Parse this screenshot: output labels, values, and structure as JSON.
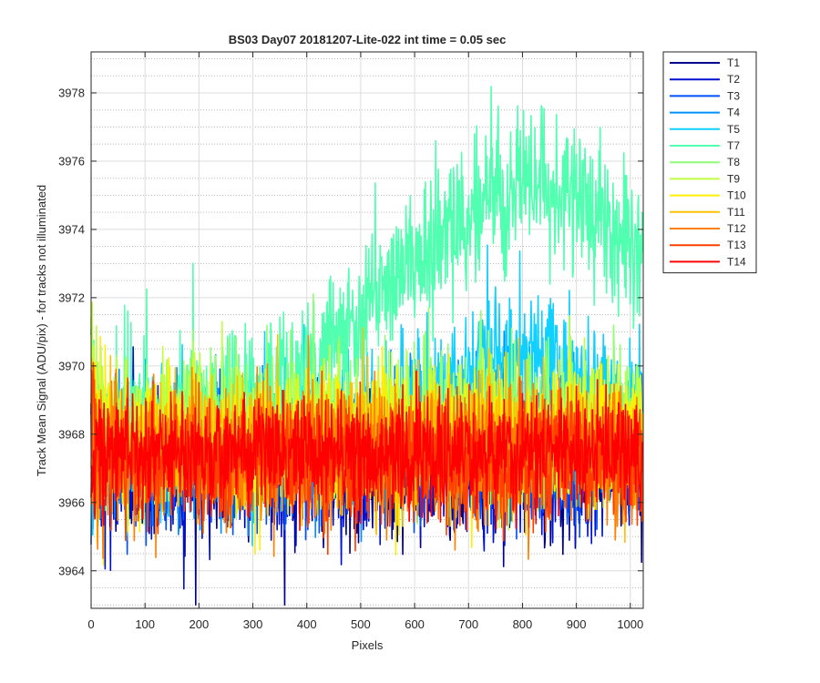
{
  "chart_data": {
    "type": "line",
    "title": "BS03 Day07 20181207-Lite-022 int time = 0.05 sec",
    "xlabel": "Pixels",
    "ylabel": "Track Mean Signal (ADU/pix) - for tracks not illuminated",
    "xlim": [
      0,
      1024
    ],
    "ylim": [
      3962.9,
      3979.2
    ],
    "xticks": [
      0,
      100,
      200,
      300,
      400,
      500,
      600,
      700,
      800,
      900,
      1000
    ],
    "yticks": [
      3964,
      3966,
      3968,
      3970,
      3972,
      3974,
      3976,
      3978
    ],
    "grid": true,
    "minor_grid_y": true,
    "legend_position": "outside-right",
    "series": [
      {
        "name": "T1",
        "color": "#00008f",
        "mean": 3967.0,
        "noise": 1.0,
        "bump_amp": 0.0,
        "bump_center": 0,
        "bump_width": 1
      },
      {
        "name": "T2",
        "color": "#0010d0",
        "mean": 3967.1,
        "noise": 1.0,
        "bump_amp": 0.0,
        "bump_center": 0,
        "bump_width": 1
      },
      {
        "name": "T3",
        "color": "#0050ff",
        "mean": 3967.3,
        "noise": 1.0,
        "bump_amp": 0.0,
        "bump_center": 0,
        "bump_width": 1
      },
      {
        "name": "T4",
        "color": "#0090ff",
        "mean": 3967.6,
        "noise": 1.0,
        "bump_amp": 0.8,
        "bump_center": 760,
        "bump_width": 200
      },
      {
        "name": "T5",
        "color": "#10d0ff",
        "mean": 3967.8,
        "noise": 1.0,
        "bump_amp": 2.5,
        "bump_center": 800,
        "bump_width": 140
      },
      {
        "name": "T7",
        "color": "#50ffb0",
        "mean": 3968.2,
        "noise": 1.1,
        "bump_amp": 7.0,
        "bump_center": 820,
        "bump_width": 260
      },
      {
        "name": "T8",
        "color": "#90ff70",
        "mean": 3968.0,
        "noise": 1.0,
        "bump_amp": 0.6,
        "bump_center": 700,
        "bump_width": 250
      },
      {
        "name": "T9",
        "color": "#c0ff40",
        "mean": 3968.1,
        "noise": 1.0,
        "bump_amp": 0.0,
        "bump_center": 0,
        "bump_width": 1
      },
      {
        "name": "T10",
        "color": "#ffef00",
        "mean": 3967.9,
        "noise": 1.0,
        "bump_amp": 0.0,
        "bump_center": 0,
        "bump_width": 1
      },
      {
        "name": "T11",
        "color": "#ffc000",
        "mean": 3967.6,
        "noise": 1.0,
        "bump_amp": 0.0,
        "bump_center": 0,
        "bump_width": 1
      },
      {
        "name": "T12",
        "color": "#ff8000",
        "mean": 3967.4,
        "noise": 1.0,
        "bump_amp": 0.0,
        "bump_center": 0,
        "bump_width": 1
      },
      {
        "name": "T13",
        "color": "#ff4000",
        "mean": 3967.3,
        "noise": 0.9,
        "bump_amp": 0.0,
        "bump_center": 0,
        "bump_width": 1
      },
      {
        "name": "T14",
        "color": "#ff0000",
        "mean": 3967.4,
        "noise": 0.8,
        "bump_amp": 0.0,
        "bump_center": 0,
        "bump_width": 1
      }
    ]
  }
}
